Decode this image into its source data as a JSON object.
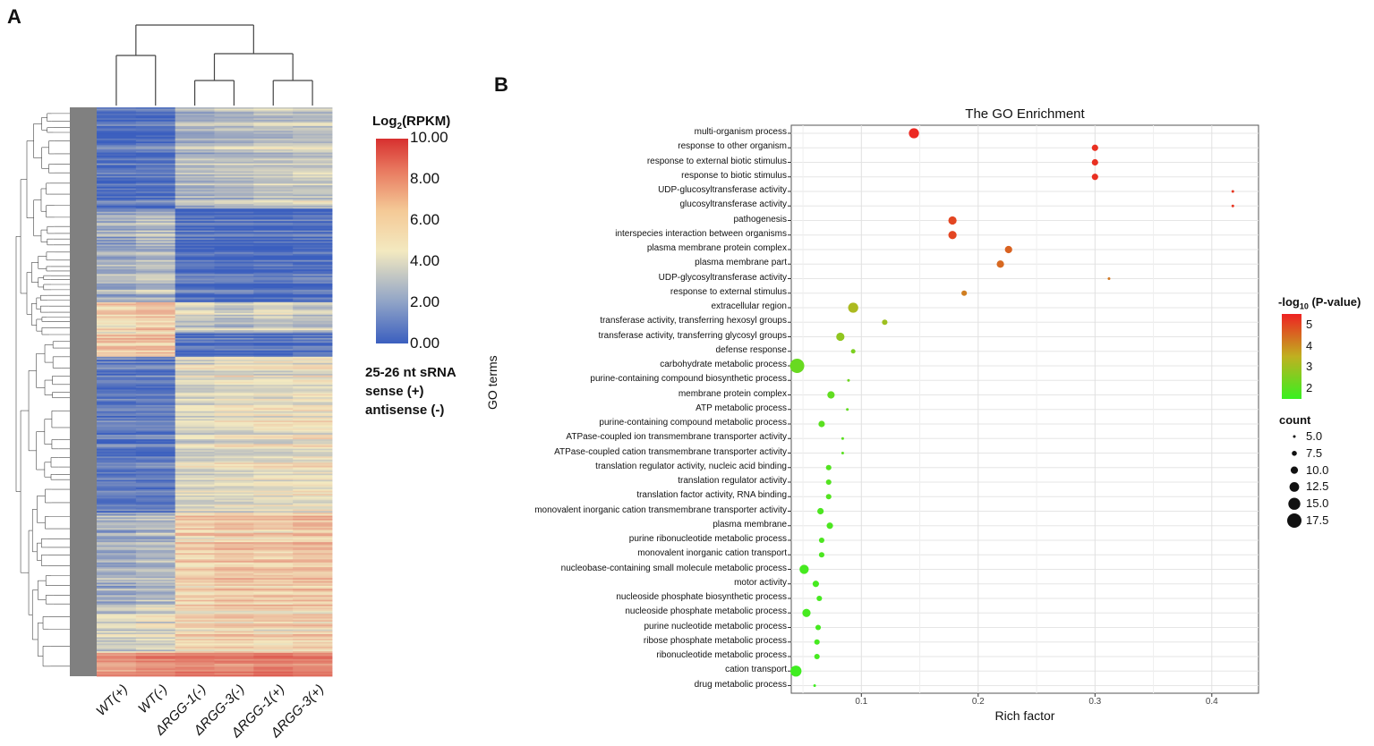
{
  "panel_a": {
    "letter": "A"
  },
  "panel_b": {
    "letter": "B"
  },
  "colors": {
    "low": "#3b5fbf",
    "mid": "#f3e9c0",
    "high": "#d7302f",
    "dendro_bar": "#808080",
    "dot_low": "#38f020",
    "dot_mid": "#c0b020",
    "dot_high": "#ee2222"
  },
  "chart_data": [
    {
      "type": "heatmap",
      "columns": [
        "WT(+)",
        "WT(-)",
        "ΔRGG-1(-)",
        "ΔRGG-3(-)",
        "ΔRGG-1(+)",
        "ΔRGG-3(+)"
      ],
      "scale": {
        "title_prefix": "Log",
        "title_sub": "2",
        "title_suffix": "(RPKM)",
        "ticks": [
          "10.00",
          "8.00",
          "6.00",
          "4.00",
          "2.00",
          "0.00"
        ],
        "range": [
          0,
          10
        ]
      },
      "caption": [
        "25-26 nt sRNA",
        "sense (+)",
        "antisense (-)"
      ],
      "column_dendrogram": "((WT(+),WT(-)),((ΔRGG-1(-),ΔRGG-3(-)),(ΔRGG-1(+),ΔRGG-3(+))))",
      "row_blocks": [
        {
          "rows": 65,
          "values": [
            0.8,
            0.9,
            3.0,
            3.2,
            3.5,
            3.6
          ]
        },
        {
          "rows": 60,
          "values": [
            2.5,
            3.0,
            0.6,
            0.6,
            0.5,
            0.6
          ]
        },
        {
          "rows": 20,
          "values": [
            5.0,
            5.5,
            3.5,
            3.0,
            3.5,
            3.2
          ]
        },
        {
          "rows": 15,
          "values": [
            5.5,
            5.8,
            0.6,
            0.7,
            0.6,
            0.7
          ]
        },
        {
          "rows": 100,
          "values": [
            1.0,
            1.0,
            4.0,
            4.2,
            4.3,
            4.5
          ]
        },
        {
          "rows": 60,
          "values": [
            2.5,
            2.8,
            5.2,
            5.5,
            5.4,
            5.6
          ]
        },
        {
          "rows": 30,
          "values": [
            3.5,
            3.8,
            4.8,
            5.0,
            4.9,
            5.1
          ]
        },
        {
          "rows": 15,
          "values": [
            7.0,
            7.5,
            7.8,
            7.6,
            8.0,
            7.8
          ]
        }
      ]
    },
    {
      "type": "scatter",
      "title": "The GO Enrichment",
      "xlabel": "Rich factor",
      "ylabel": "GO terms",
      "xlim": [
        0.04,
        0.44
      ],
      "xticks": [
        "0.1",
        "0.2",
        "0.3",
        "0.4"
      ],
      "xtick_values": [
        0.1,
        0.2,
        0.3,
        0.4
      ],
      "terms": [
        {
          "term": "multi-organism process",
          "rich_factor": 0.145,
          "neg_log10_p": 5.4,
          "count": 13
        },
        {
          "term": "response to other organism",
          "rich_factor": 0.3,
          "neg_log10_p": 5.3,
          "count": 9
        },
        {
          "term": "response to external biotic stimulus",
          "rich_factor": 0.3,
          "neg_log10_p": 5.3,
          "count": 9
        },
        {
          "term": "response to biotic stimulus",
          "rich_factor": 0.3,
          "neg_log10_p": 5.3,
          "count": 9
        },
        {
          "term": "UDP-glucosyltransferase activity",
          "rich_factor": 0.418,
          "neg_log10_p": 5.2,
          "count": 5
        },
        {
          "term": "glucosyltransferase activity",
          "rich_factor": 0.418,
          "neg_log10_p": 5.2,
          "count": 5
        },
        {
          "term": "pathogenesis",
          "rich_factor": 0.178,
          "neg_log10_p": 5.0,
          "count": 11
        },
        {
          "term": "interspecies interaction between organisms",
          "rich_factor": 0.178,
          "neg_log10_p": 5.0,
          "count": 11
        },
        {
          "term": "plasma membrane protein complex",
          "rich_factor": 0.226,
          "neg_log10_p": 4.6,
          "count": 10
        },
        {
          "term": "plasma membrane part",
          "rich_factor": 0.219,
          "neg_log10_p": 4.5,
          "count": 10
        },
        {
          "term": "UDP-glycosyltransferase activity",
          "rich_factor": 0.312,
          "neg_log10_p": 4.3,
          "count": 5
        },
        {
          "term": "response to external stimulus",
          "rich_factor": 0.188,
          "neg_log10_p": 4.2,
          "count": 8
        },
        {
          "term": "extracellular region",
          "rich_factor": 0.093,
          "neg_log10_p": 3.2,
          "count": 13
        },
        {
          "term": "transferase activity, transferring hexosyl groups",
          "rich_factor": 0.12,
          "neg_log10_p": 3.0,
          "count": 8
        },
        {
          "term": "transferase activity, transferring glycosyl groups",
          "rich_factor": 0.082,
          "neg_log10_p": 2.8,
          "count": 11
        },
        {
          "term": "defense response",
          "rich_factor": 0.093,
          "neg_log10_p": 2.5,
          "count": 7
        },
        {
          "term": "carbohydrate metabolic process",
          "rich_factor": 0.045,
          "neg_log10_p": 2.2,
          "count": 17.5
        },
        {
          "term": "purine-containing compound biosynthetic process",
          "rich_factor": 0.089,
          "neg_log10_p": 2.3,
          "count": 5
        },
        {
          "term": "membrane protein complex",
          "rich_factor": 0.074,
          "neg_log10_p": 2.1,
          "count": 10
        },
        {
          "term": "ATP metabolic process",
          "rich_factor": 0.088,
          "neg_log10_p": 2.1,
          "count": 5
        },
        {
          "term": "purine-containing compound metabolic process",
          "rich_factor": 0.066,
          "neg_log10_p": 2.0,
          "count": 9
        },
        {
          "term": "ATPase-coupled ion transmembrane transporter activity",
          "rich_factor": 0.084,
          "neg_log10_p": 2.0,
          "count": 5
        },
        {
          "term": "ATPase-coupled cation transmembrane transporter activity",
          "rich_factor": 0.084,
          "neg_log10_p": 2.0,
          "count": 5
        },
        {
          "term": "translation regulator activity, nucleic acid binding",
          "rich_factor": 0.072,
          "neg_log10_p": 1.9,
          "count": 8
        },
        {
          "term": "translation regulator activity",
          "rich_factor": 0.072,
          "neg_log10_p": 1.9,
          "count": 8
        },
        {
          "term": "translation factor activity, RNA binding",
          "rich_factor": 0.072,
          "neg_log10_p": 1.9,
          "count": 8
        },
        {
          "term": "monovalent inorganic cation transmembrane transporter activity",
          "rich_factor": 0.065,
          "neg_log10_p": 1.8,
          "count": 9
        },
        {
          "term": "plasma membrane",
          "rich_factor": 0.073,
          "neg_log10_p": 1.8,
          "count": 9
        },
        {
          "term": "purine ribonucleotide metabolic process",
          "rich_factor": 0.066,
          "neg_log10_p": 1.8,
          "count": 8
        },
        {
          "term": "monovalent inorganic cation transport",
          "rich_factor": 0.066,
          "neg_log10_p": 1.8,
          "count": 8
        },
        {
          "term": "nucleobase-containing small molecule metabolic process",
          "rich_factor": 0.051,
          "neg_log10_p": 1.7,
          "count": 12
        },
        {
          "term": "motor activity",
          "rich_factor": 0.061,
          "neg_log10_p": 1.7,
          "count": 9
        },
        {
          "term": "nucleoside phosphate biosynthetic process",
          "rich_factor": 0.064,
          "neg_log10_p": 1.7,
          "count": 8
        },
        {
          "term": "nucleoside phosphate metabolic process",
          "rich_factor": 0.053,
          "neg_log10_p": 1.7,
          "count": 11
        },
        {
          "term": "purine nucleotide metabolic process",
          "rich_factor": 0.063,
          "neg_log10_p": 1.7,
          "count": 8
        },
        {
          "term": "ribose phosphate metabolic process",
          "rich_factor": 0.062,
          "neg_log10_p": 1.7,
          "count": 8
        },
        {
          "term": "ribonucleotide metabolic process",
          "rich_factor": 0.062,
          "neg_log10_p": 1.7,
          "count": 8
        },
        {
          "term": "cation transport",
          "rich_factor": 0.044,
          "neg_log10_p": 1.6,
          "count": 14
        },
        {
          "term": "drug metabolic process",
          "rich_factor": 0.06,
          "neg_log10_p": 1.6,
          "count": 5
        }
      ],
      "color_legend": {
        "title_prefix": "-log",
        "title_sub": "10",
        "title_suffix": " (P-value)",
        "ticks": [
          "5",
          "4",
          "3",
          "2"
        ],
        "tick_values": [
          5,
          4,
          3,
          2
        ],
        "range": [
          1.5,
          5.5
        ]
      },
      "size_legend": {
        "title": "count",
        "labels": [
          "5.0",
          "7.5",
          "10.0",
          "12.5",
          "15.0",
          "17.5"
        ],
        "values": [
          5.0,
          7.5,
          10.0,
          12.5,
          15.0,
          17.5
        ]
      }
    }
  ]
}
